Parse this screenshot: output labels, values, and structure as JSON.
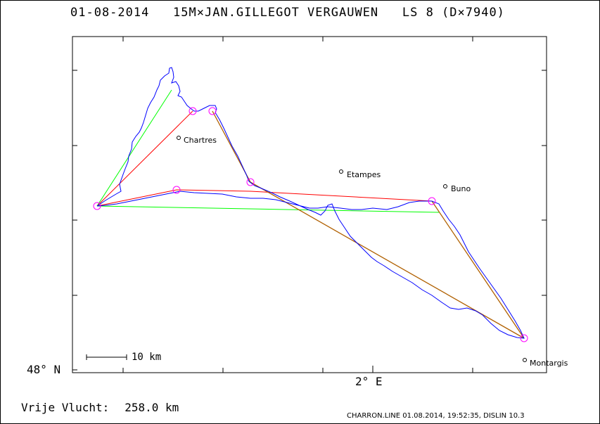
{
  "header": {
    "title": "01-08-2014   15M×JAN.GILLEGOT VERGAUWEN   LS 8 (D×7940)"
  },
  "axes": {
    "lat_label": "48° N",
    "lon_label": "2° E"
  },
  "scale_bar": {
    "label": "10 km"
  },
  "places": [
    {
      "name": "Chartres"
    },
    {
      "name": "Etampes"
    },
    {
      "name": "Buno"
    },
    {
      "name": "Montargis"
    }
  ],
  "footer": {
    "label": "Vrije Vlucht:",
    "distance": "258.0 km",
    "credit": "CHARRON.LINE 01.08.2014, 19:52:35, DISLIN 10.3"
  },
  "colors": {
    "track": "#0000ff",
    "task": "#b06000",
    "red_leg": "#ff0000",
    "green_leg": "#00ff00",
    "turnpoint": "#ff00ff"
  }
}
